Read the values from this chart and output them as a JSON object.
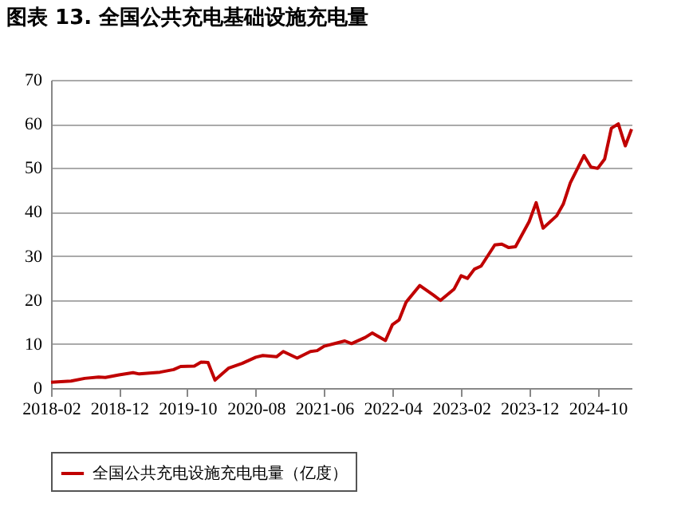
{
  "chart_data": {
    "type": "line",
    "title": "图表 13. 全国公共充电基础设施充电量",
    "x": [
      "2018-02",
      "2018-05",
      "2018-07",
      "2018-09",
      "2018-10",
      "2018-12",
      "2019-02",
      "2019-03",
      "2019-06",
      "2019-08",
      "2019-09",
      "2019-11",
      "2019-12",
      "2020-01",
      "2020-02",
      "2020-04",
      "2020-06",
      "2020-08",
      "2020-09",
      "2020-11",
      "2020-12",
      "2021-02",
      "2021-04",
      "2021-05",
      "2021-06",
      "2021-08",
      "2021-09",
      "2021-10",
      "2021-12",
      "2022-01",
      "2022-03",
      "2022-04",
      "2022-05",
      "2022-06",
      "2022-08",
      "2022-10",
      "2022-11",
      "2023-01",
      "2023-02",
      "2023-03",
      "2023-04",
      "2023-05",
      "2023-07",
      "2023-08",
      "2023-09",
      "2023-10",
      "2023-12",
      "2024-01",
      "2024-02",
      "2024-04",
      "2024-05",
      "2024-06",
      "2024-08",
      "2024-09",
      "2024-10",
      "2024-11",
      "2024-12",
      "2025-01",
      "2025-02",
      "2025-03"
    ],
    "series": [
      {
        "name": "全国公共充电设施充电电量（亿度）",
        "color": "#c00000",
        "values": [
          1.3,
          1.6,
          2.2,
          2.5,
          2.4,
          3.0,
          3.5,
          3.2,
          3.6,
          4.2,
          4.9,
          5.0,
          5.9,
          5.8,
          1.8,
          4.5,
          5.6,
          7.0,
          7.4,
          7.1,
          8.3,
          6.8,
          8.3,
          8.5,
          9.5,
          10.3,
          10.7,
          10.1,
          11.5,
          12.5,
          10.8,
          14.4,
          15.5,
          19.5,
          23.3,
          21.1,
          19.9,
          22.5,
          25.5,
          24.9,
          27,
          27.7,
          32.5,
          32.7,
          31.9,
          32.1,
          37.8,
          42.1,
          36.3,
          39.1,
          41.8,
          46.6,
          52.8,
          50.2,
          49.9,
          52,
          59,
          60,
          55,
          58.8
        ]
      }
    ],
    "xlim": [
      "2018-02",
      "2025-03"
    ],
    "xticks": [
      "2018-02",
      "2018-12",
      "2019-10",
      "2020-08",
      "2021-06",
      "2022-04",
      "2023-02",
      "2023-12",
      "2024-10"
    ],
    "ylim": [
      0,
      70
    ],
    "yticks": [
      0,
      10,
      20,
      30,
      40,
      50,
      60,
      70
    ],
    "grid": "y",
    "legend": "bottom",
    "marker": "none",
    "line_style": "solid"
  }
}
